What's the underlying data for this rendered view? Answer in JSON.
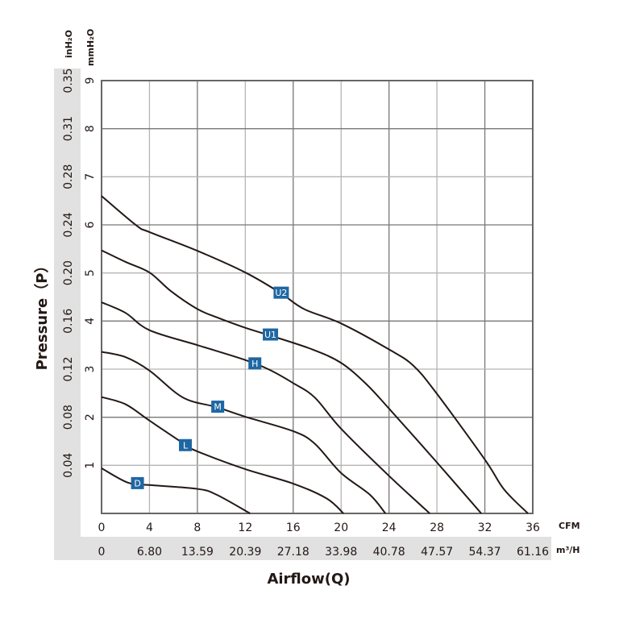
{
  "chart_data": {
    "type": "line",
    "title": "",
    "xlabel": "Airflow(Q)",
    "ylabel": "Pressure（P）",
    "x_unit": "CFM",
    "x2_unit": "m³/H",
    "y_unit": "mmH₂O",
    "y2_unit": "inH₂O",
    "xlim": [
      0,
      36
    ],
    "ylim": [
      0,
      9
    ],
    "grid": true,
    "x_ticks": [
      "0",
      "4",
      "8",
      "12",
      "16",
      "20",
      "24",
      "28",
      "32",
      "36"
    ],
    "x2_ticks": [
      "0",
      "6.80",
      "13.59",
      "20.39",
      "27.18",
      "33.98",
      "40.78",
      "47.57",
      "54.37",
      "61.16"
    ],
    "y_ticks": [
      "1",
      "2",
      "3",
      "4",
      "5",
      "6",
      "7",
      "8",
      "9"
    ],
    "y2_ticks": [
      "0.04",
      "0.08",
      "0.12",
      "0.16",
      "0.20",
      "0.24",
      "0.28",
      "0.31",
      "0.35"
    ],
    "label_color": "#1f67a3",
    "series": [
      {
        "name": "U2",
        "label_at": [
          15.0,
          4.59
        ],
        "points": [
          [
            0,
            6.6
          ],
          [
            2.9,
            5.99
          ],
          [
            4,
            5.85
          ],
          [
            8,
            5.46
          ],
          [
            12,
            5.01
          ],
          [
            14.9,
            4.59
          ],
          [
            16.9,
            4.25
          ],
          [
            20,
            3.95
          ],
          [
            24,
            3.41
          ],
          [
            26,
            3.08
          ],
          [
            27.9,
            2.52
          ],
          [
            32,
            1.12
          ],
          [
            33.6,
            0.5
          ],
          [
            35.6,
            0
          ]
        ]
      },
      {
        "name": "U1",
        "label_at": [
          14.1,
          3.72
        ],
        "points": [
          [
            0,
            5.47
          ],
          [
            2,
            5.23
          ],
          [
            4,
            5.01
          ],
          [
            5.8,
            4.62
          ],
          [
            8,
            4.25
          ],
          [
            9.6,
            4.08
          ],
          [
            12,
            3.86
          ],
          [
            14.2,
            3.69
          ],
          [
            17.6,
            3.41
          ],
          [
            20,
            3.13
          ],
          [
            22.1,
            2.69
          ],
          [
            24,
            2.18
          ],
          [
            28,
            1.06
          ],
          [
            31.7,
            0
          ]
        ]
      },
      {
        "name": "H",
        "label_at": [
          12.8,
          3.12
        ],
        "points": [
          [
            0,
            4.39
          ],
          [
            2,
            4.17
          ],
          [
            4,
            3.81
          ],
          [
            8,
            3.5
          ],
          [
            12,
            3.19
          ],
          [
            14,
            2.99
          ],
          [
            16,
            2.71
          ],
          [
            17.8,
            2.41
          ],
          [
            20,
            1.76
          ],
          [
            24,
            0.78
          ],
          [
            27.4,
            0
          ]
        ]
      },
      {
        "name": "M",
        "label_at": [
          9.7,
          2.22
        ],
        "points": [
          [
            0,
            3.36
          ],
          [
            2,
            3.25
          ],
          [
            4,
            2.97
          ],
          [
            6.8,
            2.41
          ],
          [
            9.6,
            2.21
          ],
          [
            12,
            2.01
          ],
          [
            16,
            1.71
          ],
          [
            17.8,
            1.45
          ],
          [
            20,
            0.84
          ],
          [
            22.4,
            0.39
          ],
          [
            23.7,
            0
          ]
        ]
      },
      {
        "name": "L",
        "label_at": [
          7.0,
          1.42
        ],
        "points": [
          [
            0,
            2.42
          ],
          [
            2,
            2.27
          ],
          [
            4,
            1.93
          ],
          [
            7,
            1.43
          ],
          [
            8,
            1.29
          ],
          [
            12,
            0.92
          ],
          [
            16,
            0.62
          ],
          [
            18.8,
            0.31
          ],
          [
            20.2,
            0
          ]
        ]
      },
      {
        "name": "D",
        "label_at": [
          3.0,
          0.63
        ],
        "points": [
          [
            0,
            0.94
          ],
          [
            2.2,
            0.64
          ],
          [
            4,
            0.59
          ],
          [
            8,
            0.51
          ],
          [
            9.6,
            0.39
          ],
          [
            12.4,
            0
          ]
        ]
      }
    ]
  }
}
